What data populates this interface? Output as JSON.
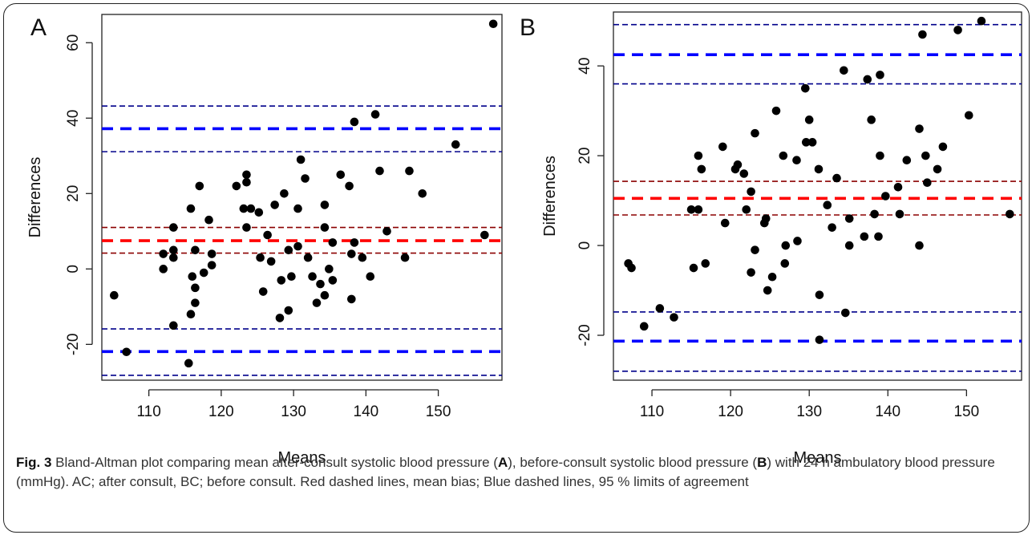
{
  "chart_data": [
    {
      "type": "scatter",
      "panel_label": "A",
      "xlabel": "Means",
      "ylabel": "Differences",
      "xlim": [
        103.5,
        158.8
      ],
      "ylim": [
        -29.5,
        67.5
      ],
      "xticks": [
        110,
        120,
        130,
        140,
        150
      ],
      "yticks": [
        -20,
        0,
        20,
        40,
        60
      ],
      "grid": false,
      "lines": [
        {
          "role": "mean bias",
          "y": 7.5,
          "color": "#ff0000",
          "weight": "thick"
        },
        {
          "role": "mean bias CI upper",
          "y": 11,
          "color": "#8b0000",
          "weight": "thin"
        },
        {
          "role": "mean bias CI lower",
          "y": 4.2,
          "color": "#8b0000",
          "weight": "thin"
        },
        {
          "role": "upper limit of agreement",
          "y": 37.2,
          "color": "#0000ff",
          "weight": "thick"
        },
        {
          "role": "upper limit CI upper",
          "y": 43.2,
          "color": "#00008b",
          "weight": "thin"
        },
        {
          "role": "upper limit CI lower",
          "y": 31.1,
          "color": "#00008b",
          "weight": "thin"
        },
        {
          "role": "lower limit of agreement",
          "y": -21.9,
          "color": "#0000ff",
          "weight": "thick"
        },
        {
          "role": "lower limit CI upper",
          "y": -15.9,
          "color": "#00008b",
          "weight": "thin"
        },
        {
          "role": "lower limit CI lower",
          "y": -28.2,
          "color": "#00008b",
          "weight": "thin"
        }
      ],
      "points": [
        [
          105.2,
          -7
        ],
        [
          106.9,
          -22
        ],
        [
          112.0,
          4
        ],
        [
          112.0,
          0
        ],
        [
          113.4,
          11
        ],
        [
          113.4,
          5
        ],
        [
          113.4,
          3
        ],
        [
          113.4,
          -15
        ],
        [
          115.5,
          -25
        ],
        [
          115.8,
          -12
        ],
        [
          115.8,
          16
        ],
        [
          116.0,
          -2
        ],
        [
          116.4,
          5
        ],
        [
          116.4,
          -5
        ],
        [
          116.4,
          -9
        ],
        [
          117.0,
          22
        ],
        [
          117.6,
          -1
        ],
        [
          118.3,
          13
        ],
        [
          118.7,
          1
        ],
        [
          118.7,
          4
        ],
        [
          122.1,
          22
        ],
        [
          123.1,
          16
        ],
        [
          123.5,
          25
        ],
        [
          123.5,
          23
        ],
        [
          123.5,
          11
        ],
        [
          124.1,
          16
        ],
        [
          125.2,
          15
        ],
        [
          125.4,
          3
        ],
        [
          125.8,
          -6
        ],
        [
          126.4,
          9
        ],
        [
          126.9,
          2
        ],
        [
          127.4,
          17
        ],
        [
          128.1,
          -13
        ],
        [
          128.3,
          -3
        ],
        [
          128.7,
          20
        ],
        [
          129.3,
          5
        ],
        [
          129.3,
          -11
        ],
        [
          129.7,
          -2
        ],
        [
          130.6,
          16
        ],
        [
          130.6,
          6
        ],
        [
          131.0,
          29
        ],
        [
          131.6,
          24
        ],
        [
          132.0,
          3
        ],
        [
          132.6,
          -2
        ],
        [
          133.2,
          -9
        ],
        [
          133.7,
          -4
        ],
        [
          134.3,
          17
        ],
        [
          134.3,
          11
        ],
        [
          134.3,
          -7
        ],
        [
          134.9,
          0
        ],
        [
          135.4,
          7
        ],
        [
          135.4,
          -3
        ],
        [
          136.5,
          25
        ],
        [
          137.7,
          22
        ],
        [
          138.0,
          -8
        ],
        [
          138.0,
          4
        ],
        [
          138.4,
          39
        ],
        [
          138.4,
          7
        ],
        [
          139.5,
          3
        ],
        [
          140.6,
          -2
        ],
        [
          141.3,
          41
        ],
        [
          141.9,
          26
        ],
        [
          142.9,
          10
        ],
        [
          145.4,
          3
        ],
        [
          146.0,
          26
        ],
        [
          147.8,
          20
        ],
        [
          152.4,
          33
        ],
        [
          156.4,
          9
        ],
        [
          157.6,
          65
        ]
      ]
    },
    {
      "type": "scatter",
      "panel_label": "B",
      "xlabel": "Means",
      "ylabel": "Differences",
      "xlim": [
        105.1,
        157.0
      ],
      "ylim": [
        -30,
        52
      ],
      "xticks": [
        110,
        120,
        130,
        140,
        150
      ],
      "yticks": [
        -20,
        0,
        20,
        40
      ],
      "grid": false,
      "lines": [
        {
          "role": "mean bias",
          "y": 10.5,
          "color": "#ff0000",
          "weight": "thick"
        },
        {
          "role": "mean bias CI upper",
          "y": 14.3,
          "color": "#8b0000",
          "weight": "thin"
        },
        {
          "role": "mean bias CI lower",
          "y": 6.8,
          "color": "#8b0000",
          "weight": "thin"
        },
        {
          "role": "upper limit of agreement",
          "y": 42.5,
          "color": "#0000ff",
          "weight": "thick"
        },
        {
          "role": "upper limit CI upper",
          "y": 49.2,
          "color": "#00008b",
          "weight": "thin"
        },
        {
          "role": "upper limit CI lower",
          "y": 36,
          "color": "#00008b",
          "weight": "thin"
        },
        {
          "role": "lower limit of agreement",
          "y": -21.3,
          "color": "#0000ff",
          "weight": "thick"
        },
        {
          "role": "lower limit CI upper",
          "y": -14.8,
          "color": "#00008b",
          "weight": "thin"
        },
        {
          "role": "lower limit CI lower",
          "y": -28,
          "color": "#00008b",
          "weight": "thin"
        }
      ],
      "points": [
        [
          107.0,
          -4
        ],
        [
          107.4,
          -5
        ],
        [
          109.0,
          -18
        ],
        [
          111.0,
          -14
        ],
        [
          112.8,
          -16
        ],
        [
          115.0,
          8
        ],
        [
          115.3,
          -5
        ],
        [
          115.9,
          20
        ],
        [
          115.9,
          8
        ],
        [
          116.3,
          17
        ],
        [
          116.8,
          -4
        ],
        [
          119.0,
          22
        ],
        [
          119.3,
          5
        ],
        [
          120.6,
          17
        ],
        [
          120.9,
          18
        ],
        [
          121.7,
          16
        ],
        [
          122.0,
          8
        ],
        [
          122.6,
          12
        ],
        [
          122.6,
          -6
        ],
        [
          123.1,
          25
        ],
        [
          123.1,
          -1
        ],
        [
          124.3,
          5
        ],
        [
          124.5,
          6
        ],
        [
          124.7,
          -10
        ],
        [
          125.3,
          -7
        ],
        [
          125.8,
          30
        ],
        [
          126.7,
          20
        ],
        [
          126.9,
          -4
        ],
        [
          127.0,
          0
        ],
        [
          128.4,
          19
        ],
        [
          128.5,
          1
        ],
        [
          129.5,
          35
        ],
        [
          129.6,
          23
        ],
        [
          130.0,
          28
        ],
        [
          130.4,
          23
        ],
        [
          131.2,
          17
        ],
        [
          131.3,
          -11
        ],
        [
          131.3,
          -21
        ],
        [
          132.3,
          9
        ],
        [
          132.9,
          4
        ],
        [
          133.5,
          15
        ],
        [
          134.4,
          39
        ],
        [
          134.6,
          -15
        ],
        [
          135.1,
          6
        ],
        [
          135.1,
          0
        ],
        [
          137.0,
          2
        ],
        [
          137.4,
          37
        ],
        [
          137.9,
          28
        ],
        [
          138.3,
          7
        ],
        [
          138.8,
          2
        ],
        [
          139.0,
          38
        ],
        [
          139.0,
          20
        ],
        [
          139.7,
          11
        ],
        [
          141.3,
          13
        ],
        [
          141.5,
          7
        ],
        [
          142.4,
          19
        ],
        [
          144.0,
          26
        ],
        [
          144.0,
          0
        ],
        [
          144.4,
          47
        ],
        [
          144.8,
          20
        ],
        [
          145.0,
          14
        ],
        [
          146.3,
          17
        ],
        [
          147.0,
          22
        ],
        [
          148.9,
          48
        ],
        [
          150.3,
          29
        ],
        [
          151.9,
          50
        ],
        [
          155.5,
          7
        ]
      ]
    }
  ],
  "caption": {
    "fig_label": "Fig. 3",
    "text_1": " Bland-Altman plot comparing mean after-consult systolic blood pressure (",
    "bold_a": "A",
    "text_2": "), before-consult systolic blood pressure (",
    "bold_b": "B",
    "text_3": ") with 24 h ambulatory blood pressure (mmHg). AC; after consult, BC; before consult. Red dashed lines, mean bias; Blue dashed lines, 95 % limits of agreement"
  }
}
